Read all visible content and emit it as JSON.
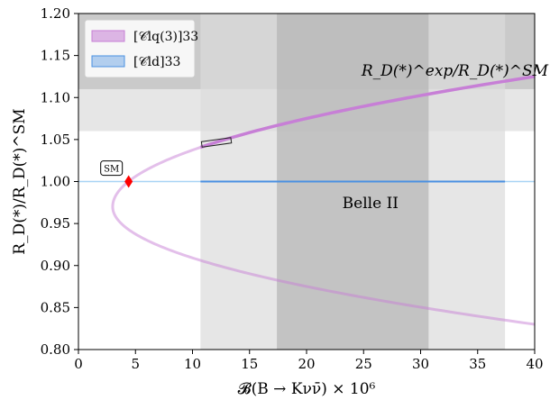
{
  "chart_data": {
    "type": "line",
    "xlabel": "𝓑(B → Kνν̄) × 10⁶",
    "ylabel": "R_D(*)/R_D(*)^SM",
    "xlim": [
      0,
      40
    ],
    "ylim": [
      0.8,
      1.2
    ],
    "xticks": [
      "0",
      "5",
      "10",
      "15",
      "20",
      "25",
      "30",
      "35",
      "40"
    ],
    "yticks": [
      "0.80",
      "0.85",
      "0.90",
      "0.95",
      "1.00",
      "1.05",
      "1.10",
      "1.15",
      "1.20"
    ],
    "legend_position": "top-left",
    "series": [
      {
        "name": "[𝒞lq(3)]33",
        "color": "#c77fd6",
        "curve": "parabola",
        "vertex": [
          3.0,
          0.97
        ],
        "points": [
          {
            "x": 3.0,
            "y": 0.97
          },
          {
            "x": 4.4,
            "y": 1.0
          },
          {
            "x": 10.7,
            "y": 1.037
          },
          {
            "x": 17.0,
            "y": 1.067
          },
          {
            "x": 40.0,
            "y": 1.125
          },
          {
            "x": 10.7,
            "y": 0.908
          },
          {
            "x": 17.0,
            "y": 0.882
          },
          {
            "x": 40.0,
            "y": 0.83
          }
        ],
        "emphasized_from_x": 10.7
      },
      {
        "name": "[𝒞ld]33",
        "color": "#4a90e2",
        "points": [
          {
            "x": 0,
            "y": 1.0
          },
          {
            "x": 40,
            "y": 1.0
          }
        ],
        "emphasized_range": [
          10.7,
          37.4
        ]
      }
    ],
    "bands": [
      {
        "axis": "y",
        "range": [
          1.06,
          1.11
        ],
        "shade": "light"
      },
      {
        "axis": "y",
        "range": [
          1.11,
          1.2
        ],
        "shade": "dark"
      },
      {
        "axis": "x",
        "range": [
          10.7,
          37.4
        ],
        "shade": "light"
      },
      {
        "axis": "x",
        "range": [
          17.4,
          30.7
        ],
        "shade": "dark"
      }
    ],
    "annotations": [
      {
        "text": "R_D(*)^exp/R_D(*)^SM",
        "x": 33,
        "y": 1.126
      },
      {
        "text": "Belle II",
        "x": 25.6,
        "y": 0.975
      },
      {
        "text": "SM",
        "x": 2.9,
        "y": 1.016
      }
    ],
    "sm_point": {
      "x": 4.4,
      "y": 1.0,
      "color": "#ff0000"
    }
  }
}
